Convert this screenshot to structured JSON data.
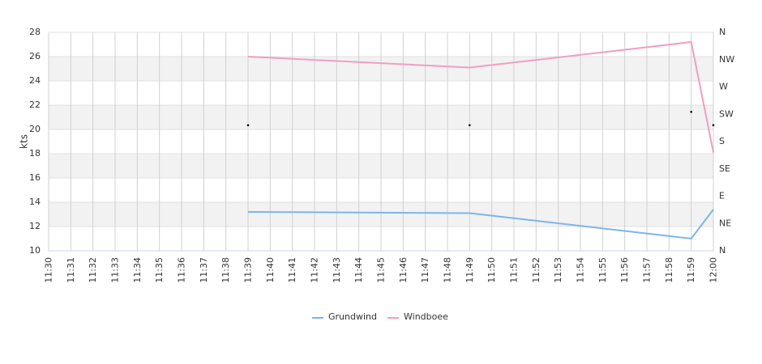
{
  "chart_data": {
    "type": "line",
    "ylabel": "kts",
    "categories": [
      "11:30",
      "11:31",
      "11:32",
      "11:33",
      "11:34",
      "11:35",
      "11:36",
      "11:37",
      "11:38",
      "11:39",
      "11:40",
      "11:41",
      "11:42",
      "11:43",
      "11:44",
      "11:45",
      "11:46",
      "11:47",
      "11:48",
      "11:49",
      "11:50",
      "11:51",
      "11:52",
      "11:53",
      "11:54",
      "11:55",
      "11:56",
      "11:57",
      "11:58",
      "11:59",
      "12:00"
    ],
    "series": [
      {
        "name": "Grundwind",
        "color": "#7cb5ec",
        "x": [
          "11:39",
          "11:49",
          "11:59",
          "12:00"
        ],
        "values": [
          13.2,
          13.1,
          11.0,
          13.4
        ]
      },
      {
        "name": "Windboee",
        "color": "#f19ec2",
        "x": [
          "11:39",
          "11:49",
          "11:59",
          "12:00"
        ],
        "values": [
          26.0,
          25.1,
          27.2,
          18.1
        ]
      }
    ],
    "direction_points": {
      "axis": "y2",
      "color": "#000000",
      "x": [
        "11:39",
        "11:49",
        "11:59",
        "12:00"
      ],
      "values": [
        207,
        207,
        229,
        207
      ]
    },
    "ylim": [
      10,
      28
    ],
    "yticks": [
      10,
      12,
      14,
      16,
      18,
      20,
      22,
      24,
      26,
      28
    ],
    "y2lim": [
      0,
      360
    ],
    "y2ticks": [
      {
        "value": 0,
        "label": "N"
      },
      {
        "value": 45,
        "label": "NE"
      },
      {
        "value": 90,
        "label": "E"
      },
      {
        "value": 135,
        "label": "SE"
      },
      {
        "value": 180,
        "label": "S"
      },
      {
        "value": 225,
        "label": "SW"
      },
      {
        "value": 270,
        "label": "W"
      },
      {
        "value": 315,
        "label": "NW"
      },
      {
        "value": 360,
        "label": "N"
      }
    ],
    "grid": true,
    "legend": "bottom"
  }
}
